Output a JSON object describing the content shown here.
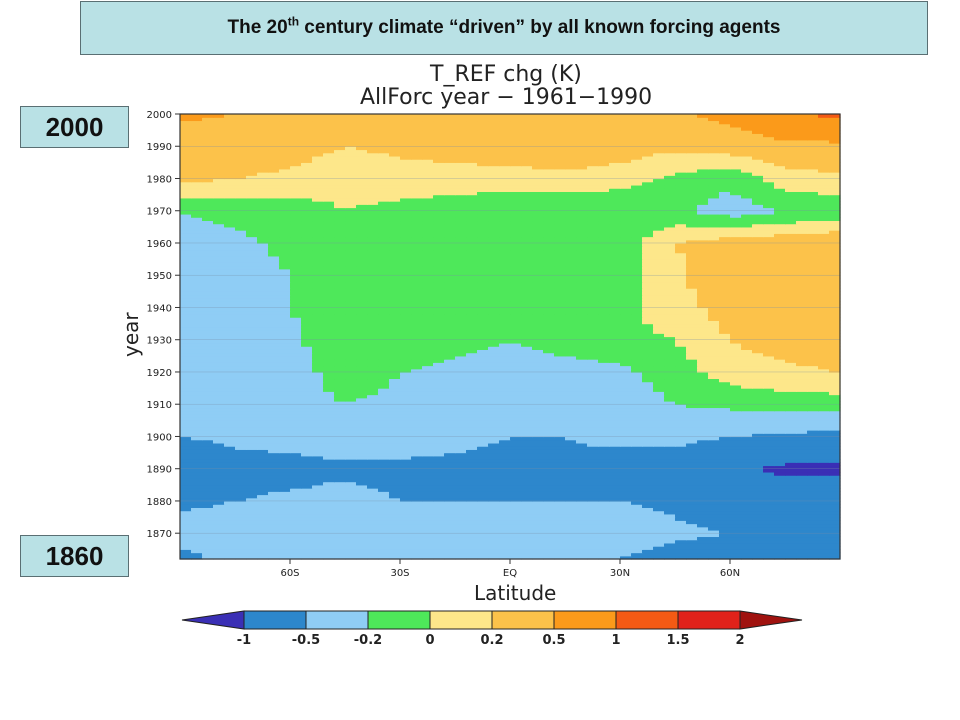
{
  "slide": {
    "title_pre": "The 20",
    "title_sup": "th",
    "title_post": " century climate “driven” by all known forcing agents",
    "label_top": "2000",
    "label_bottom": "1860"
  },
  "chart_data": {
    "type": "heatmap",
    "title": "T_REF chg (K)",
    "subtitle": "AllForc year − 1961−1990",
    "xlabel": "Latitude",
    "ylabel": "year",
    "xlim": [
      -90,
      90
    ],
    "ylim": [
      1862,
      2000
    ],
    "x_ticks": [
      {
        "value": -60,
        "label": "60S"
      },
      {
        "value": -30,
        "label": "30S"
      },
      {
        "value": 0,
        "label": "EQ"
      },
      {
        "value": 30,
        "label": "30N"
      },
      {
        "value": 60,
        "label": "60N"
      }
    ],
    "y_ticks": [
      {
        "value": 1870,
        "label": "1870"
      },
      {
        "value": 1880,
        "label": "1880"
      },
      {
        "value": 1890,
        "label": "1890"
      },
      {
        "value": 1900,
        "label": "1900"
      },
      {
        "value": 1910,
        "label": "1910"
      },
      {
        "value": 1920,
        "label": "1920"
      },
      {
        "value": 1930,
        "label": "1930"
      },
      {
        "value": 1940,
        "label": "1940"
      },
      {
        "value": 1950,
        "label": "1950"
      },
      {
        "value": 1960,
        "label": "1960"
      },
      {
        "value": 1970,
        "label": "1970"
      },
      {
        "value": 1980,
        "label": "1980"
      },
      {
        "value": 1990,
        "label": "1990"
      },
      {
        "value": 2000,
        "label": "2000"
      }
    ],
    "colorbar": {
      "levels": [
        "-1",
        "-0.5",
        "-0.2",
        "0",
        "0.2",
        "0.5",
        "1",
        "1.5",
        "2"
      ],
      "colors": [
        "#3a2fb5",
        "#2d87cc",
        "#8fcdf5",
        "#4ee85a",
        "#fde78a",
        "#fcc24a",
        "#fb9a1a",
        "#f45a14",
        "#e0221a",
        "#a0120f"
      ]
    },
    "lat_nodes": [
      -90,
      -75,
      -60,
      -45,
      -30,
      -15,
      0,
      15,
      30,
      45,
      60,
      75,
      90
    ],
    "year_nodes": [
      1862,
      1870,
      1880,
      1890,
      1900,
      1910,
      1920,
      1930,
      1940,
      1950,
      1960,
      1970,
      1980,
      1990,
      2000
    ],
    "values": [
      [
        -0.6,
        -0.4,
        -0.4,
        -0.45,
        -0.4,
        -0.4,
        -0.45,
        -0.45,
        -0.5,
        -0.6,
        -0.7,
        -0.8,
        -0.9
      ],
      [
        -0.4,
        -0.35,
        -0.35,
        -0.25,
        -0.3,
        -0.4,
        -0.4,
        -0.4,
        -0.4,
        -0.45,
        -0.5,
        -0.6,
        -0.6
      ],
      [
        -0.55,
        -0.5,
        -0.45,
        -0.4,
        -0.5,
        -0.5,
        -0.5,
        -0.5,
        -0.5,
        -0.55,
        -0.65,
        -0.7,
        -0.7
      ],
      [
        -0.7,
        -0.6,
        -0.6,
        -0.55,
        -0.6,
        -0.55,
        -0.55,
        -0.55,
        -0.6,
        -0.7,
        -0.9,
        -1.1,
        -1.1
      ],
      [
        -0.5,
        -0.45,
        -0.4,
        -0.35,
        -0.3,
        -0.45,
        -0.5,
        -0.5,
        -0.45,
        -0.4,
        -0.5,
        -0.55,
        -0.6
      ],
      [
        -0.4,
        -0.3,
        -0.3,
        -0.2,
        -0.25,
        -0.3,
        -0.4,
        -0.35,
        -0.3,
        -0.2,
        -0.15,
        -0.1,
        -0.1
      ],
      [
        -0.35,
        -0.3,
        -0.3,
        -0.1,
        -0.2,
        -0.25,
        -0.3,
        -0.3,
        -0.25,
        -0.1,
        0.1,
        0.15,
        0.2
      ],
      [
        -0.3,
        -0.3,
        -0.25,
        -0.05,
        -0.1,
        -0.15,
        -0.2,
        -0.1,
        -0.05,
        0.0,
        0.2,
        0.3,
        0.35
      ],
      [
        -0.3,
        -0.3,
        -0.2,
        -0.1,
        -0.05,
        -0.1,
        -0.1,
        -0.05,
        -0.05,
        0.1,
        0.3,
        0.4,
        0.4
      ],
      [
        -0.35,
        -0.3,
        -0.2,
        -0.1,
        -0.05,
        -0.1,
        -0.1,
        -0.15,
        -0.1,
        0.15,
        0.4,
        0.5,
        0.5
      ],
      [
        -0.25,
        -0.25,
        -0.15,
        -0.05,
        -0.1,
        -0.15,
        -0.2,
        -0.2,
        -0.1,
        0.2,
        0.3,
        0.35,
        0.4
      ],
      [
        -0.2,
        -0.15,
        -0.1,
        0.0,
        -0.05,
        -0.1,
        -0.15,
        -0.2,
        -0.2,
        -0.15,
        -0.3,
        -0.2,
        -0.15
      ],
      [
        0.25,
        0.2,
        0.15,
        0.05,
        0.1,
        0.1,
        0.1,
        0.15,
        0.1,
        -0.05,
        -0.15,
        0.1,
        0.15
      ],
      [
        0.35,
        0.35,
        0.3,
        0.2,
        0.25,
        0.3,
        0.35,
        0.35,
        0.3,
        0.25,
        0.3,
        0.4,
        0.4
      ],
      [
        0.55,
        0.5,
        0.45,
        0.35,
        0.45,
        0.5,
        0.5,
        0.5,
        0.5,
        0.45,
        0.6,
        0.9,
        1.1
      ]
    ]
  }
}
